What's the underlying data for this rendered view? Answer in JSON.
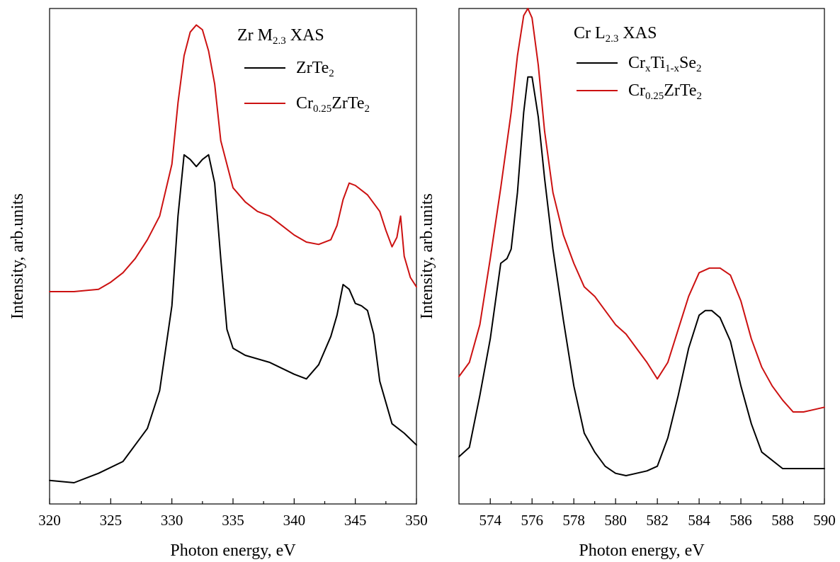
{
  "chart_data": [
    {
      "type": "line",
      "title": "Zr M",
      "title_sub": "2.3",
      "title_suffix": " XAS",
      "xlabel": "Photon energy, eV",
      "ylabel": "Intensity, arb.units",
      "xlim": [
        320,
        350
      ],
      "ylim": [
        -0.05,
        1.0
      ],
      "yticks_shown": false,
      "grid": false,
      "legend_placement": "top-right",
      "x_ticks": [
        "320",
        "325",
        "330",
        "335",
        "340",
        "345",
        "350"
      ],
      "series": [
        {
          "name": "ZrTe2",
          "legend_parts": [
            {
              "t": "ZrTe",
              "s": "n"
            },
            {
              "t": "2",
              "s": "sub"
            }
          ],
          "color": "#000000",
          "x": [
            320,
            322,
            324,
            326,
            328,
            329,
            330,
            330.5,
            331,
            331.5,
            332,
            332.5,
            333,
            333.5,
            334,
            334.5,
            335,
            336,
            338,
            340,
            341,
            342,
            343,
            343.5,
            344,
            344.5,
            345,
            345.5,
            346,
            346.5,
            347,
            348,
            349,
            350
          ],
          "y": [
            0.0,
            -0.005,
            0.015,
            0.04,
            0.11,
            0.19,
            0.37,
            0.56,
            0.69,
            0.68,
            0.665,
            0.68,
            0.69,
            0.63,
            0.47,
            0.32,
            0.28,
            0.265,
            0.25,
            0.225,
            0.215,
            0.245,
            0.305,
            0.35,
            0.415,
            0.405,
            0.375,
            0.37,
            0.36,
            0.31,
            0.21,
            0.12,
            0.1,
            0.075
          ]
        },
        {
          "name": "Cr0.25ZrTe2",
          "legend_parts": [
            {
              "t": "Cr",
              "s": "n"
            },
            {
              "t": "0.25",
              "s": "sub"
            },
            {
              "t": "ZrTe",
              "s": "n"
            },
            {
              "t": "2",
              "s": "sub"
            }
          ],
          "color": "#cc1111",
          "x": [
            320,
            322,
            324,
            325,
            326,
            327,
            328,
            329,
            330,
            330.5,
            331,
            331.5,
            332,
            332.5,
            333,
            333.5,
            334,
            335,
            336,
            337,
            338,
            339,
            340,
            341,
            342,
            343,
            343.5,
            344,
            344.5,
            345,
            346,
            347,
            347.5,
            348,
            348.4,
            348.7,
            349,
            349.5,
            350
          ],
          "y": [
            0.4,
            0.4,
            0.405,
            0.42,
            0.44,
            0.47,
            0.51,
            0.56,
            0.67,
            0.8,
            0.9,
            0.95,
            0.965,
            0.955,
            0.91,
            0.84,
            0.72,
            0.62,
            0.59,
            0.57,
            0.56,
            0.54,
            0.52,
            0.505,
            0.5,
            0.51,
            0.54,
            0.595,
            0.63,
            0.625,
            0.605,
            0.57,
            0.53,
            0.495,
            0.515,
            0.56,
            0.475,
            0.43,
            0.41
          ]
        }
      ]
    },
    {
      "type": "line",
      "title": "Cr L",
      "title_sub": "2.3",
      "title_suffix": " XAS",
      "xlabel": "Photon energy, eV",
      "ylabel": "Intensity, arb.units",
      "xlim": [
        572.5,
        590
      ],
      "ylim": [
        -0.05,
        1.0
      ],
      "yticks_shown": false,
      "grid": false,
      "legend_placement": "top-right",
      "x_ticks": [
        "574",
        "576",
        "578",
        "580",
        "582",
        "584",
        "586",
        "588",
        "590"
      ],
      "series": [
        {
          "name": "CrxTi1-xSe2",
          "legend_parts": [
            {
              "t": "Cr",
              "s": "n"
            },
            {
              "t": "x",
              "s": "sub"
            },
            {
              "t": "Ti",
              "s": "n"
            },
            {
              "t": "1-x",
              "s": "sub"
            },
            {
              "t": "Se",
              "s": "n"
            },
            {
              "t": "2",
              "s": "sub"
            }
          ],
          "color": "#000000",
          "x": [
            572.5,
            573,
            573.5,
            574,
            574.5,
            574.8,
            575,
            575.3,
            575.6,
            575.8,
            576,
            576.3,
            576.6,
            577,
            577.5,
            578,
            578.5,
            579,
            579.5,
            580,
            580.5,
            581,
            581.5,
            582,
            582.5,
            583,
            583.5,
            584,
            584.3,
            584.6,
            585,
            585.5,
            586,
            586.5,
            587,
            588,
            589,
            590
          ],
          "y": [
            0.05,
            0.07,
            0.18,
            0.3,
            0.46,
            0.47,
            0.49,
            0.61,
            0.78,
            0.855,
            0.855,
            0.77,
            0.64,
            0.49,
            0.34,
            0.2,
            0.1,
            0.06,
            0.03,
            0.015,
            0.01,
            0.015,
            0.02,
            0.03,
            0.09,
            0.18,
            0.28,
            0.35,
            0.36,
            0.36,
            0.345,
            0.295,
            0.2,
            0.12,
            0.06,
            0.025,
            0.025,
            0.025
          ]
        },
        {
          "name": "Cr0.25ZrTe2",
          "legend_parts": [
            {
              "t": "Cr",
              "s": "n"
            },
            {
              "t": "0.25",
              "s": "sub"
            },
            {
              "t": "ZrTe",
              "s": "n"
            },
            {
              "t": "2",
              "s": "sub"
            }
          ],
          "color": "#cc1111",
          "x": [
            572.5,
            573,
            573.5,
            574,
            574.5,
            575,
            575.3,
            575.6,
            575.8,
            576,
            576.3,
            576.6,
            577,
            577.5,
            578,
            578.5,
            579,
            579.5,
            580,
            580.5,
            581,
            581.5,
            582,
            582.5,
            583,
            583.5,
            584,
            584.5,
            585,
            585.5,
            586,
            586.5,
            587,
            587.5,
            588,
            588.5,
            589,
            589.5,
            590
          ],
          "y": [
            0.22,
            0.25,
            0.33,
            0.47,
            0.62,
            0.78,
            0.9,
            0.985,
            1.0,
            0.98,
            0.88,
            0.74,
            0.61,
            0.52,
            0.46,
            0.41,
            0.39,
            0.36,
            0.33,
            0.31,
            0.28,
            0.25,
            0.215,
            0.25,
            0.32,
            0.39,
            0.44,
            0.45,
            0.45,
            0.435,
            0.38,
            0.3,
            0.24,
            0.2,
            0.17,
            0.145,
            0.145,
            0.15,
            0.155
          ]
        }
      ]
    }
  ]
}
